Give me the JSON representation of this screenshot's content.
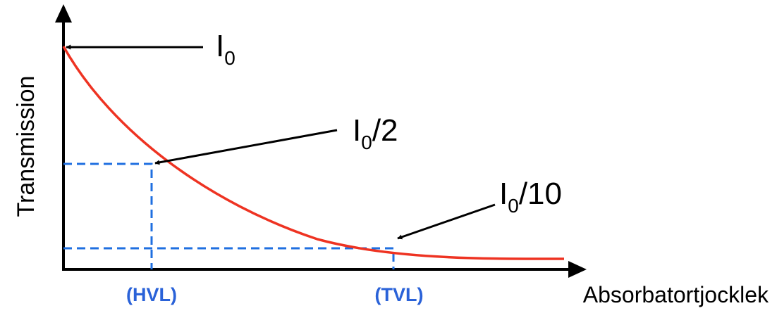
{
  "axes": {
    "ylabel": "Transmission",
    "xlabel": "Absorbatortjocklek"
  },
  "annotations": {
    "i0": {
      "main": "I",
      "sub": "0",
      "rest": ""
    },
    "half": {
      "main": "I",
      "sub": "0",
      "rest": "/2"
    },
    "tenth": {
      "main": "I",
      "sub": "0",
      "rest": "/10"
    }
  },
  "markers": {
    "hvl": "(HVL)",
    "tvl": "(TVL)"
  },
  "colors": {
    "curve": "#ee3322",
    "guide": "#1f6fe0",
    "marker_text": "#2a62d8",
    "axis": "#000000"
  }
}
